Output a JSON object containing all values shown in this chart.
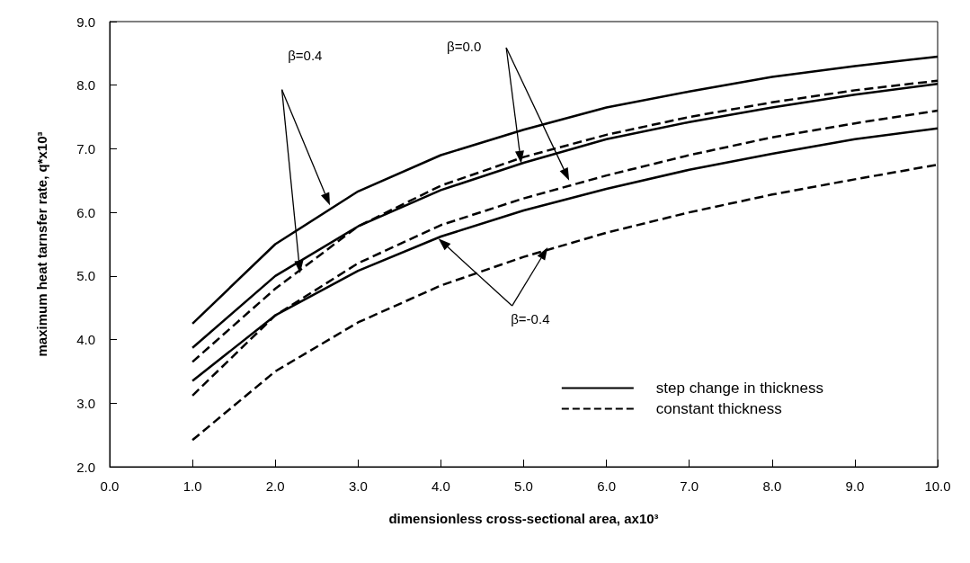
{
  "chart_data": {
    "type": "line",
    "xlabel": "dimensionless cross-sectional area, ax10³",
    "ylabel": "maximum heat tarnsfer rate, q*x10³",
    "x": [
      1,
      2,
      3,
      4,
      5,
      6,
      7,
      8,
      9,
      10
    ],
    "series": [
      {
        "name": "step change in thickness",
        "color": "#000000",
        "line_style": "solid",
        "values": [
          4.25,
          5.5,
          6.33,
          6.9,
          7.3,
          7.65,
          7.9,
          8.13,
          8.3,
          8.45
        ]
      },
      {
        "color": "#000000",
        "line_style": "solid",
        "values": [
          3.87,
          5.0,
          5.78,
          6.35,
          6.78,
          7.15,
          7.42,
          7.65,
          7.85,
          8.02
        ]
      },
      {
        "color": "#000000",
        "line_style": "solid",
        "values": [
          3.35,
          4.38,
          5.08,
          5.62,
          6.03,
          6.37,
          6.67,
          6.92,
          7.15,
          7.32
        ]
      },
      {
        "name": "constant thickness",
        "color": "#000000",
        "line_style": "dashed",
        "values": [
          3.65,
          4.8,
          5.78,
          6.42,
          6.87,
          7.22,
          7.5,
          7.73,
          7.92,
          8.07
        ]
      },
      {
        "color": "#000000",
        "line_style": "dashed",
        "values": [
          3.12,
          4.38,
          5.2,
          5.8,
          6.22,
          6.58,
          6.9,
          7.18,
          7.4,
          7.6
        ]
      },
      {
        "color": "#000000",
        "line_style": "dashed",
        "values": [
          2.42,
          3.5,
          4.27,
          4.85,
          5.3,
          5.68,
          6.0,
          6.28,
          6.52,
          6.75
        ]
      }
    ],
    "xlim": [
      0,
      10
    ],
    "xticks": [
      {
        "value": 0,
        "label": "0.0"
      },
      {
        "value": 1,
        "label": "1.0"
      },
      {
        "value": 2,
        "label": "2.0"
      },
      {
        "value": 3,
        "label": "3.0"
      },
      {
        "value": 4,
        "label": "4.0"
      },
      {
        "value": 5,
        "label": "5.0"
      },
      {
        "value": 6,
        "label": "6.0"
      },
      {
        "value": 7,
        "label": "7.0"
      },
      {
        "value": 8,
        "label": "8.0"
      },
      {
        "value": 9,
        "label": "9.0"
      },
      {
        "value": 10,
        "label": "10.0"
      }
    ],
    "ylim": [
      2,
      9
    ],
    "yticks": [
      {
        "value": 2,
        "label": "2.0"
      },
      {
        "value": 3,
        "label": "3.0"
      },
      {
        "value": 4,
        "label": "4.0"
      },
      {
        "value": 5,
        "label": "5.0"
      },
      {
        "value": 6,
        "label": "6.0"
      },
      {
        "value": 7,
        "label": "7.0"
      },
      {
        "value": 8,
        "label": "8.0"
      },
      {
        "value": 9,
        "label": "9.0"
      }
    ],
    "grid": false,
    "legend": "bottom right",
    "marker": "none",
    "annotations": [
      "β=0.4",
      "β=0.0",
      "β=-0.4"
    ]
  }
}
